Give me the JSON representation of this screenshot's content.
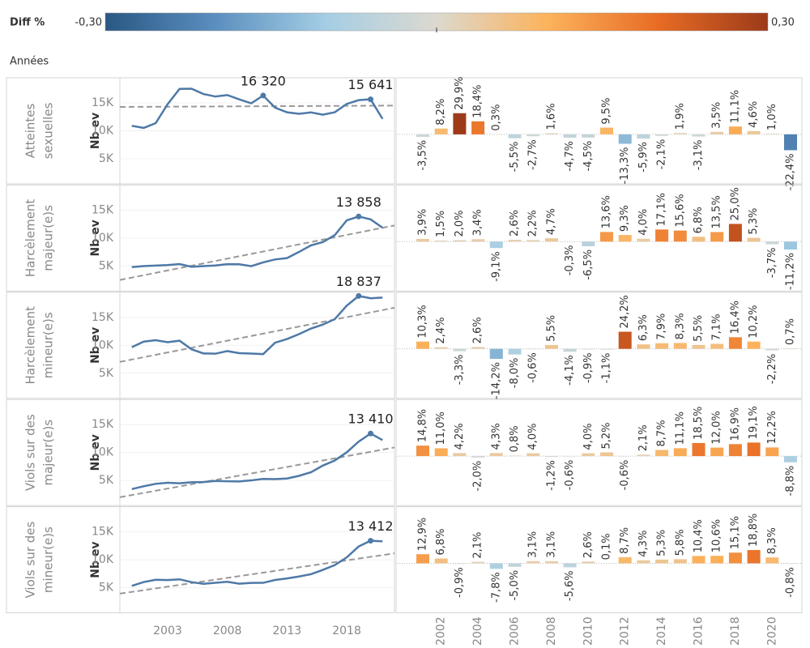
{
  "header": {
    "legend_title": "Diff %",
    "axis_label": "Années"
  },
  "color_scale": {
    "domain": [
      {
        "value": -0.3,
        "label": "-0,30"
      },
      {
        "value": 0.3,
        "label": "0,30"
      }
    ],
    "colors": [
      "#2a5783",
      "#5b8fbf",
      "#a5cee4",
      "#dcd9cf",
      "#fcb35c",
      "#e86c24",
      "#9c3a1a"
    ]
  },
  "chart_data": [
    {
      "type": "line",
      "title_lines": [
        "Atteintes",
        "sexuelles"
      ],
      "ylabel": "Nb ev",
      "color": "#4e79a7",
      "grid": true,
      "trendline": true,
      "x": [
        2000,
        2001,
        2002,
        2003,
        2004,
        2005,
        2006,
        2007,
        2008,
        2009,
        2010,
        2011,
        2012,
        2013,
        2014,
        2015,
        2016,
        2017,
        2018,
        2019,
        2020,
        2021
      ],
      "xlim": [
        1999,
        2022
      ],
      "ylim": [
        500,
        19500
      ],
      "yticks": [
        {
          "value": 5000,
          "label": "5K"
        },
        {
          "value": 10000,
          "label": "10K"
        },
        {
          "value": 15000,
          "label": "15K"
        }
      ],
      "values": [
        10900,
        10520,
        11380,
        14780,
        17500,
        17550,
        16590,
        16140,
        16400,
        15630,
        14930,
        16320,
        14150,
        13320,
        13040,
        13290,
        12880,
        13330,
        14810,
        15490,
        15641,
        12140
      ],
      "value_labels": [
        null,
        null,
        null,
        null,
        null,
        null,
        null,
        null,
        null,
        null,
        null,
        "16 320",
        null,
        null,
        null,
        null,
        null,
        null,
        null,
        null,
        "15 641",
        null
      ]
    },
    {
      "type": "line",
      "title_lines": [
        "Harcèlement",
        "majeur(e)s"
      ],
      "ylabel": "Nb ev",
      "color": "#4e79a7",
      "grid": true,
      "trendline": true,
      "x": [
        2000,
        2001,
        2002,
        2003,
        2004,
        2005,
        2006,
        2007,
        2008,
        2009,
        2010,
        2011,
        2012,
        2013,
        2014,
        2015,
        2016,
        2017,
        2018,
        2019,
        2020,
        2021
      ],
      "xlim": [
        1999,
        2022
      ],
      "ylim": [
        500,
        19500
      ],
      "yticks": [
        {
          "value": 5000,
          "label": "5K"
        },
        {
          "value": 10000,
          "label": "10K"
        },
        {
          "value": 15000,
          "label": "15K"
        }
      ],
      "values": [
        4802,
        4989,
        5064,
        5165,
        5341,
        4855,
        4981,
        5091,
        5330,
        5314,
        4969,
        5644,
        6169,
        6416,
        7513,
        8685,
        9276,
        10528,
        13160,
        13858,
        13345,
        11851
      ],
      "value_labels": [
        null,
        null,
        null,
        null,
        null,
        null,
        null,
        null,
        null,
        null,
        null,
        null,
        null,
        null,
        null,
        null,
        null,
        null,
        null,
        "13 858",
        null,
        null
      ]
    },
    {
      "type": "line",
      "title_lines": [
        "Harcèlement",
        "mineur(e)s"
      ],
      "ylabel": "Nb ev",
      "color": "#4e79a7",
      "grid": true,
      "trendline": true,
      "x": [
        2000,
        2001,
        2002,
        2003,
        2004,
        2005,
        2006,
        2007,
        2008,
        2009,
        2010,
        2011,
        2012,
        2013,
        2014,
        2015,
        2016,
        2017,
        2018,
        2019,
        2020,
        2021
      ],
      "xlim": [
        1999,
        2022
      ],
      "ylim": [
        500,
        19500
      ],
      "yticks": [
        {
          "value": 5000,
          "label": "5K"
        },
        {
          "value": 10000,
          "label": "10K"
        },
        {
          "value": 15000,
          "label": "15K"
        }
      ],
      "values": [
        9661,
        10656,
        10912,
        10552,
        10826,
        9289,
        8546,
        8495,
        8962,
        8595,
        8518,
        8424,
        10462,
        11121,
        12000,
        12996,
        13711,
        14685,
        17093,
        18837,
        18423,
        18552
      ],
      "value_labels": [
        null,
        null,
        null,
        null,
        null,
        null,
        null,
        null,
        null,
        null,
        null,
        null,
        null,
        null,
        null,
        null,
        null,
        null,
        null,
        "18 837",
        null,
        null
      ]
    },
    {
      "type": "line",
      "title_lines": [
        "Viols sur des",
        "majeur(e)s"
      ],
      "ylabel": "Nb ev",
      "color": "#4e79a7",
      "grid": true,
      "trendline": true,
      "x": [
        2000,
        2001,
        2002,
        2003,
        2004,
        2005,
        2006,
        2007,
        2008,
        2009,
        2010,
        2011,
        2012,
        2013,
        2014,
        2015,
        2016,
        2017,
        2018,
        2019,
        2020,
        2021
      ],
      "xlim": [
        1999,
        2022
      ],
      "ylim": [
        500,
        19500
      ],
      "yticks": [
        {
          "value": 5000,
          "label": "5K"
        },
        {
          "value": 10000,
          "label": "10K"
        },
        {
          "value": 15000,
          "label": "15K"
        }
      ],
      "values": [
        3453,
        3964,
        4400,
        4585,
        4493,
        4686,
        4723,
        4912,
        4853,
        4824,
        5017,
        5278,
        5246,
        5356,
        5822,
        6468,
        7664,
        8584,
        10035,
        11952,
        13410,
        12230
      ],
      "value_labels": [
        null,
        null,
        null,
        null,
        null,
        null,
        null,
        null,
        null,
        null,
        null,
        null,
        null,
        null,
        null,
        null,
        null,
        null,
        null,
        null,
        "13 410",
        null
      ]
    },
    {
      "type": "line",
      "title_lines": [
        "Viols sur des",
        "mineur(e)s"
      ],
      "ylabel": "Nb ev",
      "color": "#4e79a7",
      "grid": true,
      "trendline": true,
      "x": [
        2000,
        2001,
        2002,
        2003,
        2004,
        2005,
        2006,
        2007,
        2008,
        2009,
        2010,
        2011,
        2012,
        2013,
        2014,
        2015,
        2016,
        2017,
        2018,
        2019,
        2020,
        2021
      ],
      "xlim": [
        1999,
        2022
      ],
      "ylim": [
        500,
        19500
      ],
      "yticks": [
        {
          "value": 5000,
          "label": "5K"
        },
        {
          "value": 10000,
          "label": "10K"
        },
        {
          "value": 15000,
          "label": "15K"
        }
      ],
      "xticks": [
        2003,
        2008,
        2013,
        2018
      ],
      "values": [
        5331,
        6019,
        6428,
        6370,
        6504,
        5997,
        5697,
        5874,
        6056,
        5717,
        5866,
        5872,
        6383,
        6657,
        7010,
        7417,
        8189,
        9057,
        10424,
        12384,
        13412,
        13305
      ],
      "value_labels": [
        null,
        null,
        null,
        null,
        null,
        null,
        null,
        null,
        null,
        null,
        null,
        null,
        null,
        null,
        null,
        null,
        null,
        null,
        null,
        null,
        "13 412",
        null
      ]
    },
    {
      "type": "bar",
      "ylim": [
        -0.7,
        0.8
      ],
      "values": [
        -0.035,
        0.082,
        0.299,
        0.184,
        0.003,
        -0.055,
        -0.027,
        0.016,
        -0.047,
        -0.045,
        0.095,
        -0.133,
        -0.059,
        -0.021,
        0.019,
        -0.031,
        0.035,
        0.111,
        0.046,
        0.01,
        -0.224
      ],
      "value_labels": [
        "-3,5%",
        "8,2%",
        "29,9%",
        "18,4%",
        "0,3%",
        "-5,5%",
        "-2,7%",
        "1,6%",
        "-4,7%",
        "-4,5%",
        "9,5%",
        "-13,3%",
        "-5,9%",
        "-2,1%",
        "1,9%",
        "-3,1%",
        "3,5%",
        "11,1%",
        "4,6%",
        "1,0%",
        "-22,4%"
      ]
    },
    {
      "type": "bar",
      "ylim": [
        -0.7,
        0.8
      ],
      "values": [
        0.039,
        0.015,
        0.02,
        0.034,
        -0.091,
        0.026,
        0.022,
        0.047,
        -0.003,
        -0.065,
        0.136,
        0.093,
        0.04,
        0.171,
        0.156,
        0.068,
        0.135,
        0.25,
        0.053,
        -0.037,
        -0.112
      ],
      "value_labels": [
        "3,9%",
        "1,5%",
        "2,0%",
        "3,4%",
        "-9,1%",
        "2,6%",
        "2,2%",
        "4,7%",
        "-0,3%",
        "-6,5%",
        "13,6%",
        "9,3%",
        "4,0%",
        "17,1%",
        "15,6%",
        "6,8%",
        "13,5%",
        "25,0%",
        "5,3%",
        "-3,7%",
        "-11,2%"
      ]
    },
    {
      "type": "bar",
      "ylim": [
        -0.7,
        0.8
      ],
      "values": [
        0.103,
        0.024,
        -0.033,
        0.026,
        -0.142,
        -0.08,
        -0.006,
        0.055,
        -0.041,
        -0.009,
        -0.011,
        0.242,
        0.063,
        0.079,
        0.083,
        0.055,
        0.071,
        0.164,
        0.102,
        -0.022,
        0.007
      ],
      "value_labels": [
        "10,3%",
        "2,4%",
        "-3,3%",
        "2,6%",
        "-14,2%",
        "-8,0%",
        "-0,6%",
        "5,5%",
        "-4,1%",
        "-0,9%",
        "-1,1%",
        "24,2%",
        "6,3%",
        "7,9%",
        "8,3%",
        "5,5%",
        "7,1%",
        "16,4%",
        "10,2%",
        "-2,2%",
        "0,7%"
      ]
    },
    {
      "type": "bar",
      "ylim": [
        -0.7,
        0.8
      ],
      "values": [
        0.148,
        0.11,
        0.042,
        -0.02,
        0.043,
        0.008,
        0.04,
        -0.012,
        -0.006,
        0.04,
        0.052,
        -0.006,
        0.021,
        0.087,
        0.111,
        0.185,
        0.12,
        0.169,
        0.191,
        0.122,
        -0.088
      ],
      "value_labels": [
        "14,8%",
        "11,0%",
        "4,2%",
        "-2,0%",
        "4,3%",
        "0,8%",
        "4,0%",
        "-1,2%",
        "-0,6%",
        "4,0%",
        "5,2%",
        "-0,6%",
        "2,1%",
        "8,7%",
        "11,1%",
        "18,5%",
        "12,0%",
        "16,9%",
        "19,1%",
        "12,2%",
        "-8,8%"
      ]
    },
    {
      "type": "bar",
      "ylim": [
        -0.7,
        0.8
      ],
      "categories": [
        null,
        "2002",
        null,
        "2004",
        null,
        "2006",
        null,
        "2008",
        null,
        "2010",
        null,
        "2012",
        null,
        "2014",
        null,
        "2016",
        null,
        "2018",
        null,
        "2020",
        null
      ],
      "values": [
        0.129,
        0.068,
        -0.009,
        0.021,
        -0.078,
        -0.05,
        0.031,
        0.031,
        -0.056,
        0.026,
        0.001,
        0.087,
        0.043,
        0.053,
        0.058,
        0.104,
        0.106,
        0.151,
        0.188,
        0.083,
        -0.008
      ],
      "value_labels": [
        "12,9%",
        "6,8%",
        "-0,9%",
        "2,1%",
        "-7,8%",
        "-5,0%",
        "3,1%",
        "3,1%",
        "-5,6%",
        "2,6%",
        "0,1%",
        "8,7%",
        "4,3%",
        "5,3%",
        "5,8%",
        "10,4%",
        "10,6%",
        "15,1%",
        "18,8%",
        "8,3%",
        "-0,8%"
      ]
    }
  ]
}
